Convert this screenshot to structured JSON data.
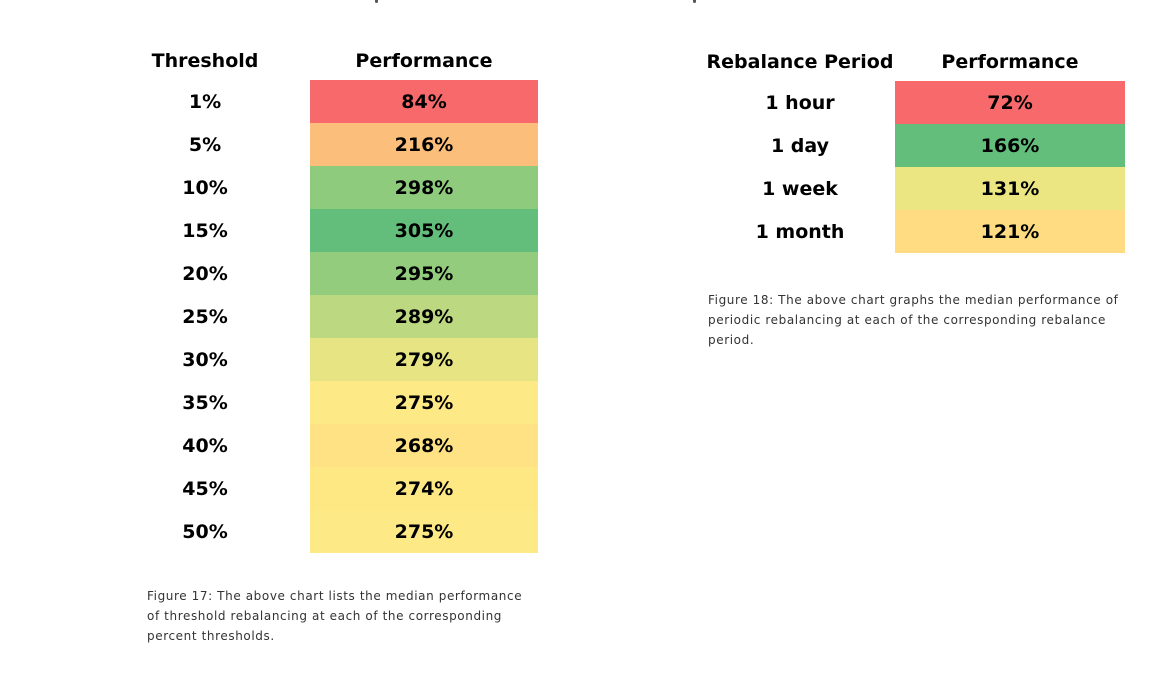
{
  "figure17": {
    "headers": {
      "label": "Threshold",
      "value": "Performance"
    },
    "rows": [
      {
        "label": "1%",
        "value": "84%",
        "color": "#f8696b"
      },
      {
        "label": "5%",
        "value": "216%",
        "color": "#fcbf7b"
      },
      {
        "label": "10%",
        "value": "298%",
        "color": "#8fcb7d"
      },
      {
        "label": "15%",
        "value": "305%",
        "color": "#63be7b"
      },
      {
        "label": "20%",
        "value": "295%",
        "color": "#94cc7e"
      },
      {
        "label": "25%",
        "value": "289%",
        "color": "#bcd880"
      },
      {
        "label": "30%",
        "value": "279%",
        "color": "#e6e483"
      },
      {
        "label": "35%",
        "value": "275%",
        "color": "#fde985"
      },
      {
        "label": "40%",
        "value": "268%",
        "color": "#fee283"
      },
      {
        "label": "45%",
        "value": "274%",
        "color": "#fee884"
      },
      {
        "label": "50%",
        "value": "275%",
        "color": "#fde985"
      }
    ],
    "caption": "Figure 17: The above chart lists the median performance of threshold rebalancing at each of the corresponding percent thresholds."
  },
  "figure18": {
    "headers": {
      "label": "Rebalance Period",
      "value": "Performance"
    },
    "rows": [
      {
        "label": "1 hour",
        "value": "72%",
        "color": "#f8696b"
      },
      {
        "label": "1 day",
        "value": "166%",
        "color": "#63be7b"
      },
      {
        "label": "1 week",
        "value": "131%",
        "color": "#ebe582"
      },
      {
        "label": "1 month",
        "value": "121%",
        "color": "#ffdc81"
      }
    ],
    "caption": "Figure 18: The above chart graphs the median performance of periodic rebalancing at each of the corresponding rebalance period."
  }
}
